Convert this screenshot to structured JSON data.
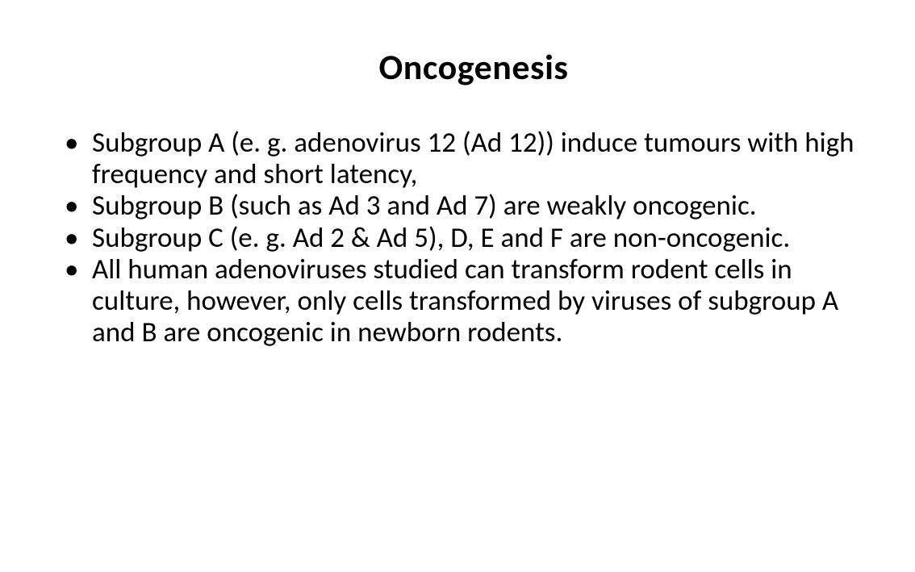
{
  "slide": {
    "title": "Oncogenesis",
    "title_fontsize": 44,
    "title_fontweight": 700,
    "title_color": "#000000",
    "body_fontsize": 35,
    "body_color": "#000000",
    "background_color": "#ffffff",
    "bullet_char": "•",
    "bullets": [
      "Subgroup A (e. g. adenovirus 12 (Ad 12)) induce tumours with high frequency and short latency,",
      "Subgroup B (such as Ad 3 and Ad 7) are weakly oncogenic.",
      "Subgroup C (e. g. Ad 2 & Ad 5), D, E and F are non-oncogenic.",
      "All human adenoviruses studied can transform rodent cells in culture, however, only cells transformed by viruses of subgroup A and B are oncogenic in newborn rodents."
    ]
  }
}
